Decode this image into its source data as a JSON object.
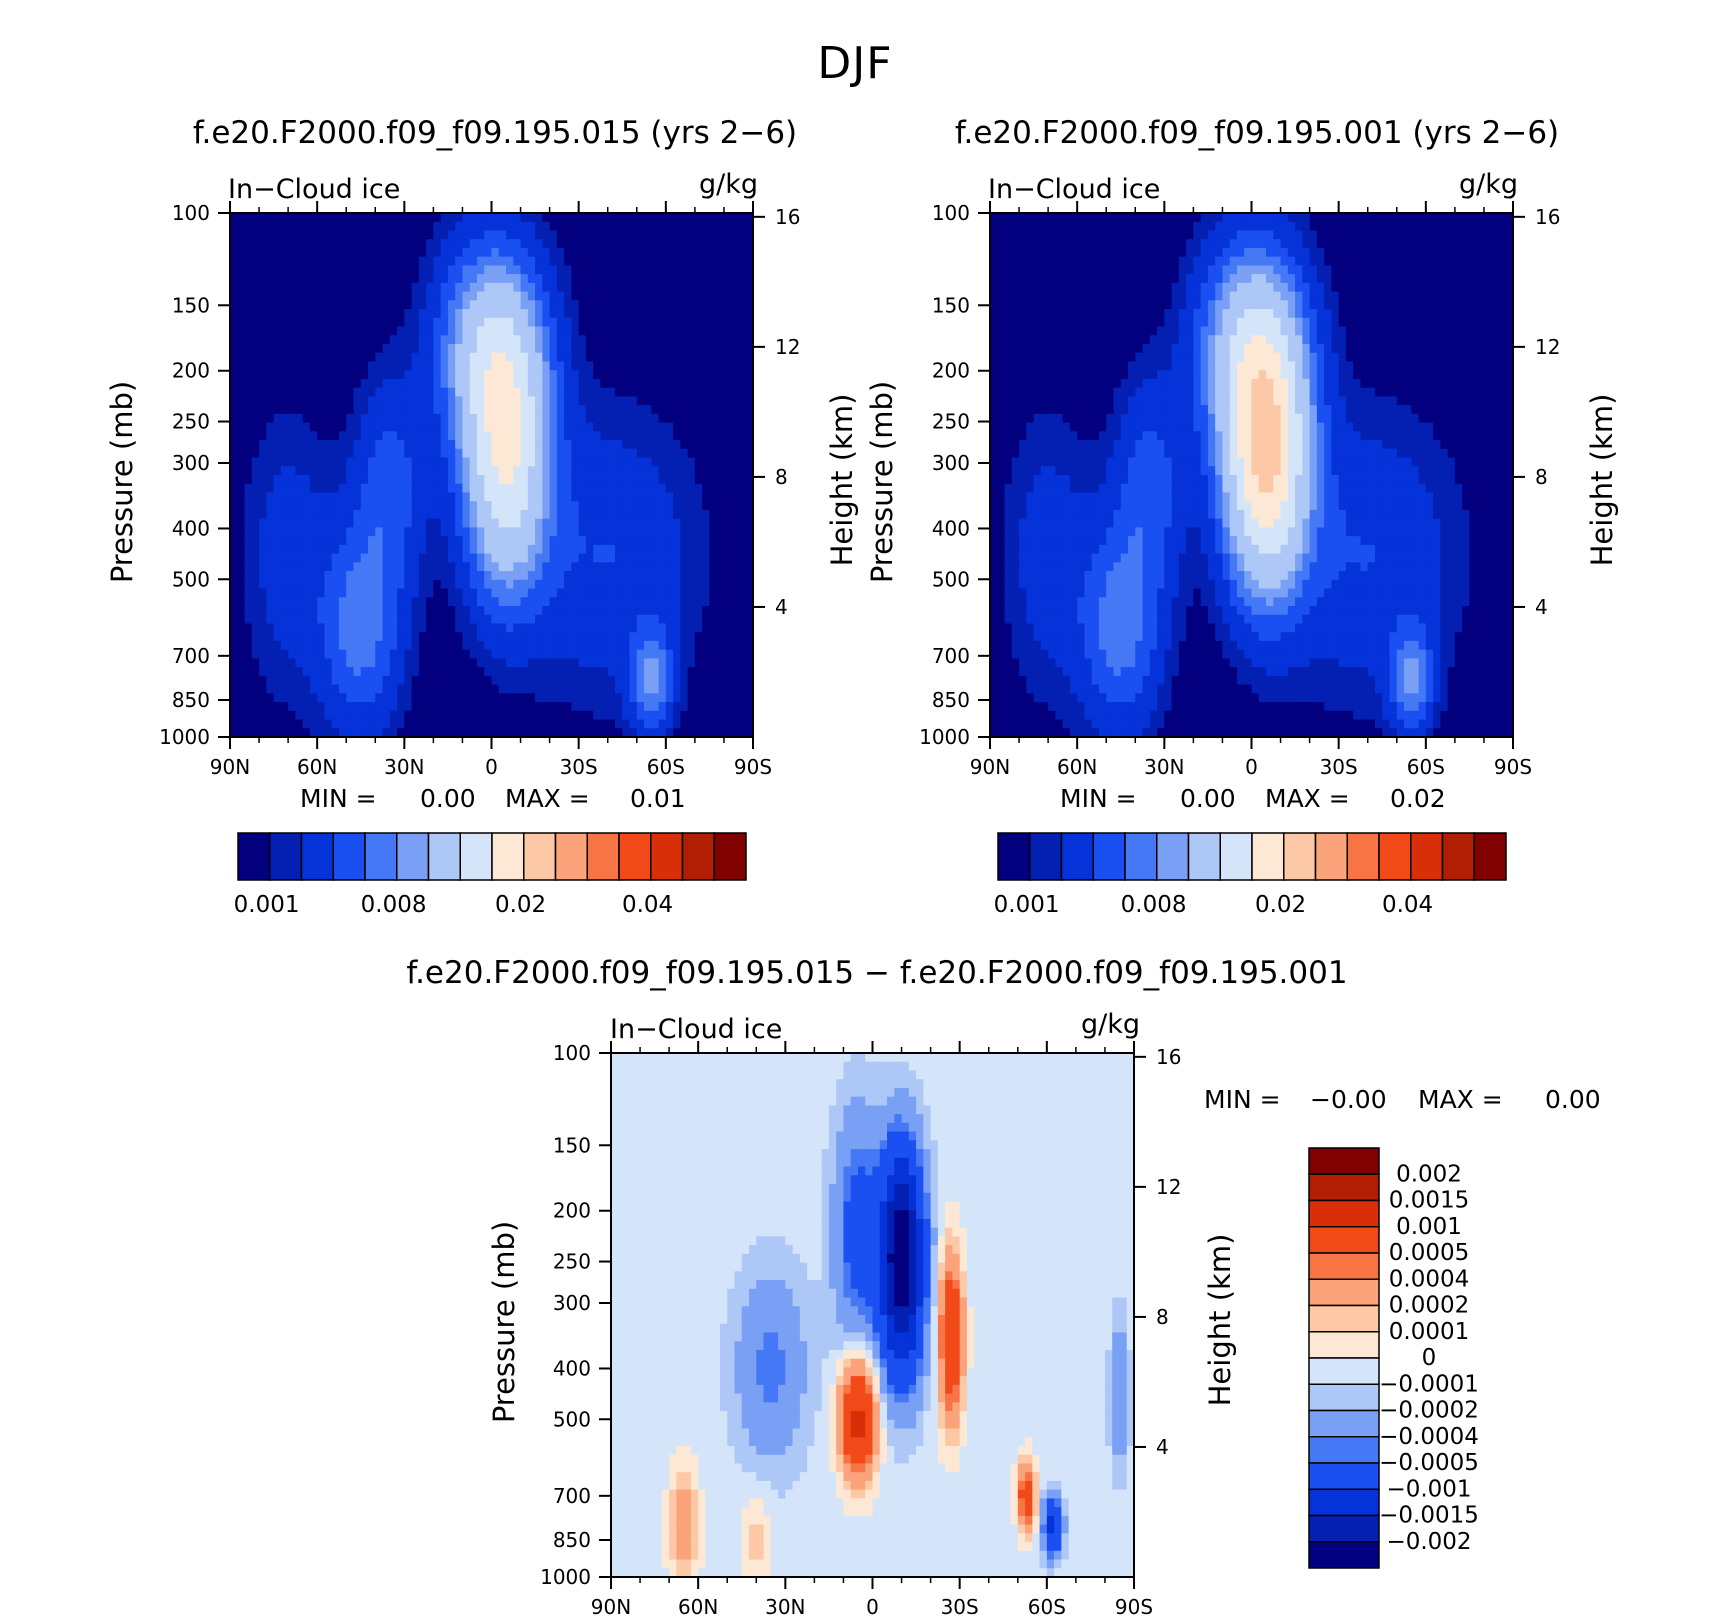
{
  "page": {
    "title": "DJF"
  },
  "colors": {
    "abs_scale": [
      "#03007f",
      "#0420b2",
      "#0533d9",
      "#1a4ff2",
      "#4478f4",
      "#7aa0f5",
      "#adc7f7",
      "#d4e5fa",
      "#fde8d6",
      "#fcc8a6",
      "#fba37a",
      "#f77545",
      "#f14a18",
      "#d92f08",
      "#b11e03",
      "#810000"
    ],
    "diff_scale": [
      "#03007f",
      "#0420b2",
      "#0533d9",
      "#1a4ff2",
      "#4478f4",
      "#7aa0f5",
      "#adc7f7",
      "#d4e5fa",
      "#fde8d6",
      "#fcc8a6",
      "#fba37a",
      "#f77545",
      "#f14a18",
      "#d92f08",
      "#b11e03",
      "#810000"
    ]
  },
  "chart_data": [
    {
      "type": "heatmap",
      "title": "f.e20.F2000.f09_f09.195.015 (yrs 2−6)",
      "variable": "In−Cloud ice",
      "units": "g/kg",
      "ylabel": "Pressure (mb)",
      "ylabel_right": "Height (km)",
      "x_ticks": [
        "90N",
        "60N",
        "30N",
        "0",
        "30S",
        "60S",
        "90S"
      ],
      "y_ticks": [
        "100",
        "150",
        "200",
        "250",
        "300",
        "400",
        "500",
        "700",
        "850",
        "1000"
      ],
      "y_ticks_right": [
        "16",
        "12",
        "8",
        "4"
      ],
      "min_label": "MIN =",
      "min_value": "0.00",
      "max_label": "MAX =",
      "max_value": "0.01",
      "colorbar_labels": [
        "0.001",
        "0.008",
        "0.02",
        "0.04"
      ],
      "features": [
        {
          "lat": -5,
          "p": 280,
          "level": 7
        },
        {
          "lat": 45,
          "p": 600,
          "level": 4
        },
        {
          "lat": -55,
          "p": 780,
          "level": 5
        }
      ]
    },
    {
      "type": "heatmap",
      "title": "f.e20.F2000.f09_f09.195.001 (yrs 2−6)",
      "variable": "In−Cloud ice",
      "units": "g/kg",
      "ylabel": "Pressure (mb)",
      "ylabel_right": "Height (km)",
      "x_ticks": [
        "90N",
        "60N",
        "30N",
        "0",
        "30S",
        "60S",
        "90S"
      ],
      "y_ticks": [
        "100",
        "150",
        "200",
        "250",
        "300",
        "400",
        "500",
        "700",
        "850",
        "1000"
      ],
      "y_ticks_right": [
        "16",
        "12",
        "8",
        "4"
      ],
      "min_label": "MIN =",
      "min_value": "0.00",
      "max_label": "MAX =",
      "max_value": "0.02",
      "colorbar_labels": [
        "0.001",
        "0.008",
        "0.02",
        "0.04"
      ],
      "features": [
        {
          "lat": -5,
          "p": 280,
          "level": 8
        },
        {
          "lat": 45,
          "p": 600,
          "level": 4
        },
        {
          "lat": -55,
          "p": 780,
          "level": 5
        }
      ]
    },
    {
      "type": "heatmap",
      "title": "f.e20.F2000.f09_f09.195.015 − f.e20.F2000.f09_f09.195.001",
      "variable": "In−Cloud ice",
      "units": "g/kg",
      "ylabel": "Pressure (mb)",
      "ylabel_right": "Height (km)",
      "x_ticks": [
        "90N",
        "60N",
        "30N",
        "0",
        "30S",
        "60S",
        "90S"
      ],
      "y_ticks": [
        "100",
        "150",
        "200",
        "250",
        "300",
        "400",
        "500",
        "700",
        "850",
        "1000"
      ],
      "y_ticks_right": [
        "16",
        "12",
        "8",
        "4"
      ],
      "min_label": "MIN =",
      "min_value": "−0.00",
      "max_label": "MAX =",
      "max_value": "0.00",
      "colorbar_labels": [
        "0.002",
        "0.0015",
        "0.001",
        "0.0005",
        "0.0004",
        "0.0002",
        "0.0001",
        "0",
        "−0.0001",
        "−0.0002",
        "−0.0004",
        "−0.0005",
        "−0.001",
        "−0.0015",
        "−0.002"
      ],
      "features": [
        {
          "lat": -10,
          "p": 250,
          "sign": "negative"
        },
        {
          "lat": 5,
          "p": 500,
          "sign": "positive"
        },
        {
          "lat": -27,
          "p": 330,
          "sign": "positive"
        },
        {
          "lat": -53,
          "p": 700,
          "sign": "positive"
        },
        {
          "lat": -62,
          "p": 800,
          "sign": "negative"
        }
      ]
    }
  ]
}
